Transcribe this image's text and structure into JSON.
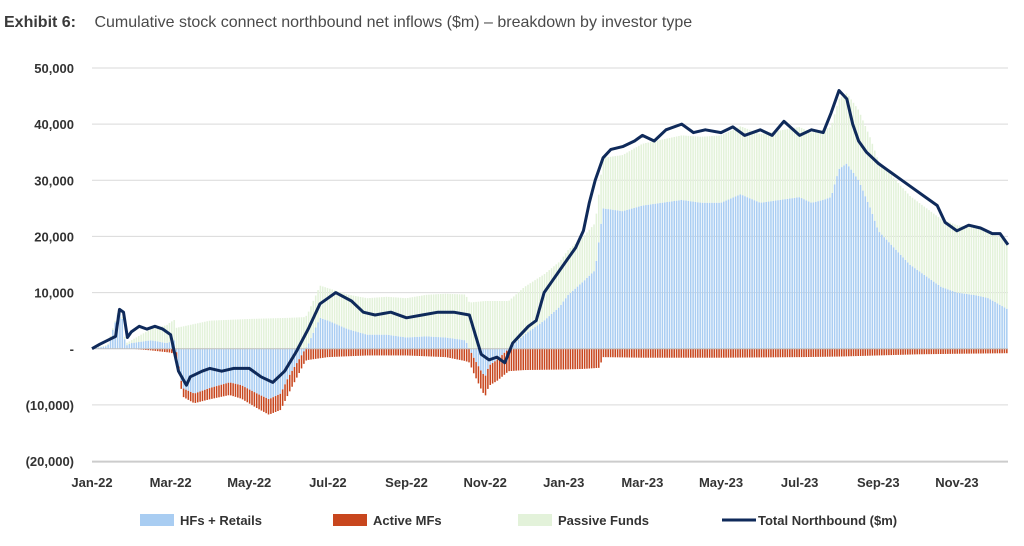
{
  "header": {
    "exhibit": "Exhibit 6:",
    "title": "Cumulative stock connect northbound net inflows ($m) – breakdown by investor type"
  },
  "colors": {
    "hf": "#a9cdf2",
    "active": "#c8461e",
    "passive": "#e3f2da",
    "total": "#0f2a5a",
    "grid": "#d9d9d9"
  },
  "chart_data": {
    "type": "area",
    "title": "Cumulative stock connect northbound net inflows ($m) – breakdown by investor type",
    "xlabel": "",
    "ylabel": "",
    "ylim": [
      -20000,
      50000
    ],
    "ytick_values": [
      50000,
      40000,
      30000,
      20000,
      10000,
      0,
      -10000,
      -20000
    ],
    "ytick_labels": [
      "50,000",
      "40,000",
      "30,000",
      "20,000",
      "10,000",
      "-",
      "(10,000)",
      "(20,000)"
    ],
    "xlim": [
      0,
      23.3
    ],
    "xtick_labels": [
      "Jan-22",
      "Mar-22",
      "May-22",
      "Jul-22",
      "Sep-22",
      "Nov-22",
      "Jan-23",
      "Mar-23",
      "May-23",
      "Jul-23",
      "Sep-23",
      "Nov-23"
    ],
    "xtick_values": [
      0,
      2,
      4,
      6,
      8,
      10,
      12,
      14,
      16,
      18,
      20,
      22
    ],
    "x_unit": "months since Jan-22",
    "legend_position": "bottom",
    "series": [
      {
        "name": "HFs + Retails",
        "kind": "stacked-bar",
        "x": [
          0,
          0.4,
          0.65,
          0.75,
          0.85,
          1.0,
          1.5,
          1.9,
          2.1,
          2.3,
          2.6,
          3.0,
          3.5,
          3.8,
          4.2,
          4.5,
          4.8,
          5.0,
          5.5,
          5.8,
          6.0,
          6.5,
          7.0,
          7.5,
          8.0,
          8.5,
          9.0,
          9.5,
          9.7,
          9.9,
          10.0,
          10.1,
          10.3,
          10.6,
          11.0,
          11.5,
          11.9,
          12.1,
          12.5,
          12.8,
          13.0,
          13.5,
          14.0,
          14.5,
          15.0,
          15.5,
          16.0,
          16.5,
          17.0,
          17.5,
          18.0,
          18.3,
          18.6,
          18.8,
          19.0,
          19.2,
          19.5,
          19.8,
          20.0,
          20.4,
          20.8,
          21.2,
          21.6,
          22.0,
          22.5,
          22.8,
          23.1,
          23.3
        ],
        "values": [
          0,
          500,
          6000,
          6500,
          500,
          1000,
          1500,
          1000,
          1500,
          -7000,
          -8000,
          -7000,
          -6000,
          -6500,
          -8000,
          -9000,
          -8000,
          -5000,
          800,
          5500,
          5000,
          3500,
          2500,
          2500,
          2000,
          2200,
          2000,
          1500,
          -1500,
          -4000,
          -5000,
          -3000,
          -2000,
          0,
          2500,
          5000,
          7500,
          9500,
          12000,
          14000,
          25000,
          24500,
          25500,
          26000,
          26500,
          26000,
          26000,
          27500,
          26000,
          26500,
          27000,
          26000,
          26500,
          27000,
          32000,
          33000,
          30000,
          25000,
          21000,
          18000,
          15000,
          13000,
          11000,
          10000,
          9500,
          9000,
          7800,
          7000
        ]
      },
      {
        "name": "Active MFs",
        "kind": "stacked-bar",
        "x": [
          0,
          1.0,
          1.5,
          2.0,
          2.3,
          3.0,
          4.0,
          5.0,
          5.5,
          6.0,
          7.0,
          8.0,
          9.0,
          9.5,
          10.0,
          10.6,
          11.0,
          12.0,
          12.5,
          12.9,
          13.0,
          14.0,
          16.0,
          18.0,
          19.0,
          20.0,
          21.0,
          22.0,
          23.3
        ],
        "values": [
          0,
          0,
          -300,
          -700,
          -1500,
          -2000,
          -2500,
          -3000,
          -2000,
          -1500,
          -1200,
          -1200,
          -1500,
          -2200,
          -3500,
          -4000,
          -3800,
          -3700,
          -3600,
          -3400,
          -1500,
          -1600,
          -1600,
          -1500,
          -1400,
          -1200,
          -1000,
          -900,
          -800
        ]
      },
      {
        "name": "Passive Funds",
        "kind": "stacked-bar",
        "x": [
          0,
          1.0,
          1.5,
          2.0,
          3.0,
          4.0,
          5.0,
          6.0,
          7.0,
          8.0,
          9.0,
          10.0,
          11.0,
          12.0,
          12.5,
          12.9,
          13.0,
          14.0,
          16.0,
          18.0,
          19.0,
          20.0,
          21.0,
          22.0,
          23.3
        ],
        "values": [
          0,
          500,
          2000,
          3500,
          5000,
          5300,
          5500,
          5800,
          6500,
          7000,
          7800,
          8500,
          8500,
          8000,
          8000,
          8500,
          9000,
          11000,
          12000,
          12500,
          12500,
          12500,
          12200,
          12000,
          12000
        ]
      },
      {
        "name": "Total Northbound ($m)",
        "kind": "line",
        "x": [
          0,
          0.2,
          0.4,
          0.6,
          0.7,
          0.8,
          0.9,
          1.0,
          1.2,
          1.4,
          1.6,
          1.8,
          2.0,
          2.2,
          2.4,
          2.5,
          2.8,
          3.0,
          3.3,
          3.6,
          4.0,
          4.3,
          4.6,
          4.9,
          5.2,
          5.5,
          5.8,
          6.0,
          6.2,
          6.6,
          6.9,
          7.2,
          7.6,
          8.0,
          8.4,
          8.8,
          9.2,
          9.6,
          9.9,
          10.1,
          10.3,
          10.5,
          10.7,
          10.9,
          11.1,
          11.3,
          11.5,
          11.7,
          11.9,
          12.1,
          12.3,
          12.5,
          12.65,
          12.8,
          13.0,
          13.2,
          13.5,
          13.8,
          14.0,
          14.3,
          14.6,
          15.0,
          15.3,
          15.6,
          16.0,
          16.3,
          16.6,
          17.0,
          17.3,
          17.6,
          18.0,
          18.3,
          18.6,
          18.8,
          19.0,
          19.2,
          19.35,
          19.5,
          19.7,
          20.0,
          20.3,
          20.6,
          20.9,
          21.2,
          21.5,
          21.7,
          22.0,
          22.3,
          22.6,
          22.9,
          23.1,
          23.3
        ],
        "values": [
          0,
          800,
          1500,
          2200,
          7000,
          6500,
          2000,
          3000,
          4000,
          3500,
          4000,
          3500,
          2500,
          -4000,
          -6500,
          -5000,
          -4000,
          -3500,
          -4000,
          -3500,
          -3500,
          -5000,
          -6000,
          -4000,
          -500,
          3500,
          8000,
          9000,
          10000,
          8500,
          6500,
          6000,
          6500,
          5500,
          6000,
          6500,
          6500,
          6000,
          -1000,
          -2000,
          -1500,
          -2500,
          1000,
          2500,
          4000,
          5000,
          10000,
          12000,
          14000,
          16000,
          18000,
          21000,
          26000,
          30000,
          34000,
          35500,
          36000,
          37000,
          38000,
          37000,
          39000,
          40000,
          38500,
          39000,
          38500,
          39500,
          38000,
          39000,
          38000,
          40500,
          38000,
          39000,
          38500,
          42000,
          46000,
          44500,
          40000,
          37000,
          35000,
          33000,
          31500,
          30000,
          28500,
          27000,
          25500,
          22500,
          21000,
          22000,
          21500,
          20500,
          20500,
          18500
        ]
      }
    ]
  }
}
